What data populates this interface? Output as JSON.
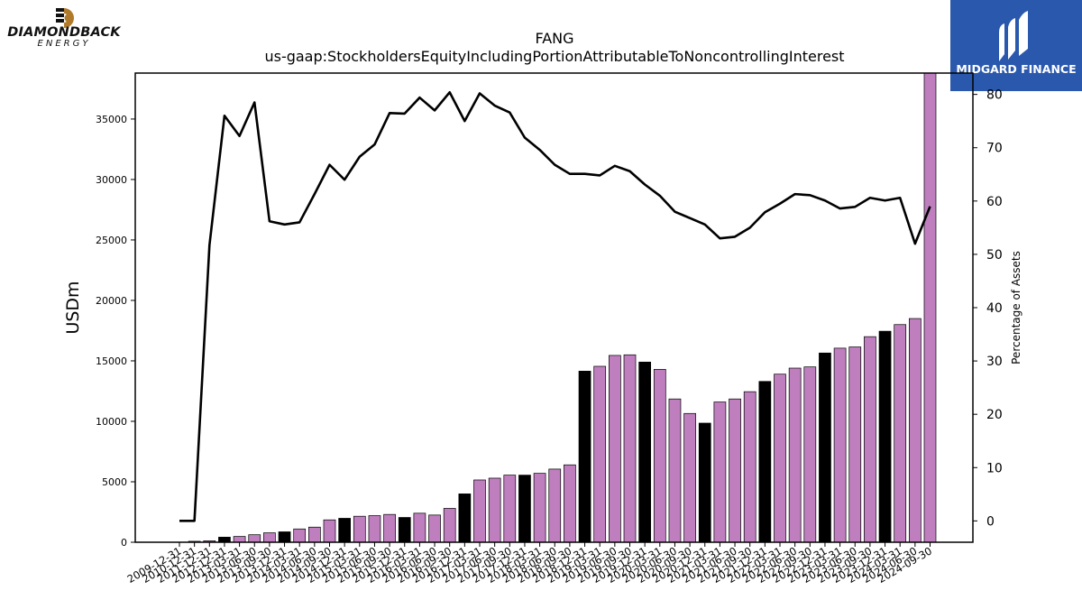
{
  "logos": {
    "left_name": "DIAMONDBACK",
    "left_sub": "ENERGY",
    "right_name": "MIDGARD FINANCE"
  },
  "colors": {
    "bar_default": "#bf7fbf",
    "bar_highlight": "#000000",
    "line": "#000000",
    "brand_right": "#2a58ad"
  },
  "chart_data": {
    "type": "bar",
    "title": "FANG",
    "subtitle": "us-gaap:StockholdersEquityIncludingPortionAttributableToNoncontrollingInterest",
    "ylabel": "USDm",
    "y2label": "Percentage of Assets",
    "ylim": [
      0,
      38800
    ],
    "y2lim": [
      -4,
      84
    ],
    "yticks": [
      0,
      5000,
      10000,
      15000,
      20000,
      25000,
      30000,
      35000
    ],
    "y2ticks": [
      0,
      10,
      20,
      30,
      40,
      50,
      60,
      70,
      80
    ],
    "categories": [
      "2009-12-31",
      "2010-12-31",
      "2011-12-31",
      "2012-12-31",
      "2013-03-31",
      "2013-06-30",
      "2013-09-30",
      "2013-12-31",
      "2014-03-31",
      "2014-06-30",
      "2014-09-30",
      "2014-12-31",
      "2015-03-31",
      "2015-06-30",
      "2015-09-30",
      "2015-12-31",
      "2016-03-31",
      "2016-06-30",
      "2016-09-30",
      "2016-12-31",
      "2017-03-31",
      "2017-06-30",
      "2017-09-30",
      "2017-12-31",
      "2018-03-31",
      "2018-06-30",
      "2018-09-30",
      "2018-12-31",
      "2019-03-31",
      "2019-06-30",
      "2019-09-30",
      "2019-12-31",
      "2020-03-31",
      "2020-06-30",
      "2020-09-30",
      "2020-12-31",
      "2021-03-31",
      "2021-06-30",
      "2021-09-30",
      "2021-12-31",
      "2022-03-31",
      "2022-06-30",
      "2022-09-30",
      "2022-12-31",
      "2023-03-31",
      "2023-06-30",
      "2023-09-30",
      "2023-12-31",
      "2024-03-31",
      "2024-06-30",
      "2024-09-30"
    ],
    "visible_tick_labels": [
      "2009-12-31",
      "2010-12-31",
      "2011-12-31",
      "2012-12-31",
      "2013-03-31",
      "2013-06-30",
      "2013-09-30",
      "2013-12-31",
      "2014-03-31",
      "2014-06-30",
      "2014-09-30",
      "2014-12-31",
      "2015-03-31",
      "2015-06-30",
      "2015-09-30",
      "2015-12-31",
      "2016-03-31",
      "2016-06-30",
      "2016-09-30",
      "2016-12-31",
      "2017-03-31",
      "2017-06-30",
      "2017-09-30",
      "2017-12-31",
      "2018-03-31",
      "2018-06-30",
      "2018-09-30",
      "2018-12-31",
      "2019-03-31",
      "2019-06-30",
      "2019-09-30",
      "2019-12-31",
      "2020-03-31",
      "2020-06-30",
      "2020-09-30",
      "2020-12-31",
      "2021-03-31",
      "2021-06-30",
      "2021-09-30",
      "2021-12-31",
      "2022-03-31",
      "2022-06-30",
      "2022-09-30",
      "2022-12-31",
      "2023-03-31",
      "2023-06-30",
      "2023-09-30",
      "2023-12-31",
      "2024-03-31",
      "2024-06-30",
      "2024-09-30"
    ],
    "bars": [
      0,
      80,
      120,
      420,
      480,
      620,
      780,
      860,
      1100,
      1250,
      1850,
      1980,
      2150,
      2200,
      2300,
      2050,
      2400,
      2250,
      2800,
      4000,
      5150,
      5300,
      5550,
      5550,
      5700,
      6050,
      6400,
      14150,
      14550,
      15450,
      15500,
      14900,
      14300,
      11850,
      10650,
      9850,
      11600,
      11850,
      12450,
      13300,
      13900,
      14400,
      14500,
      15650,
      16050,
      16150,
      17000,
      17450,
      18000,
      18500,
      39000
    ],
    "highlight": [
      false,
      false,
      false,
      true,
      false,
      false,
      false,
      true,
      false,
      false,
      false,
      true,
      false,
      false,
      false,
      true,
      false,
      false,
      false,
      true,
      false,
      false,
      false,
      true,
      false,
      false,
      false,
      true,
      false,
      false,
      false,
      true,
      false,
      false,
      false,
      true,
      false,
      false,
      false,
      true,
      false,
      false,
      false,
      true,
      false,
      false,
      false,
      true,
      false,
      false,
      false
    ],
    "line_pct": [
      0,
      0,
      51.7,
      76.0,
      72.2,
      78.5,
      56.2,
      55.6,
      56.0,
      61.3,
      66.8,
      64.0,
      68.3,
      70.6,
      76.5,
      76.4,
      79.4,
      77.0,
      80.4,
      75.0,
      80.2,
      77.9,
      76.6,
      71.9,
      69.6,
      66.8,
      65.1,
      65.1,
      64.8,
      66.6,
      65.6,
      63.1,
      61.0,
      58.0,
      56.8,
      55.6,
      53.0,
      53.3,
      55.0,
      57.9,
      59.5,
      61.3,
      61.1,
      60.1,
      58.6,
      58.9,
      60.6,
      60.1,
      60.6,
      52.0,
      59.0
    ]
  }
}
